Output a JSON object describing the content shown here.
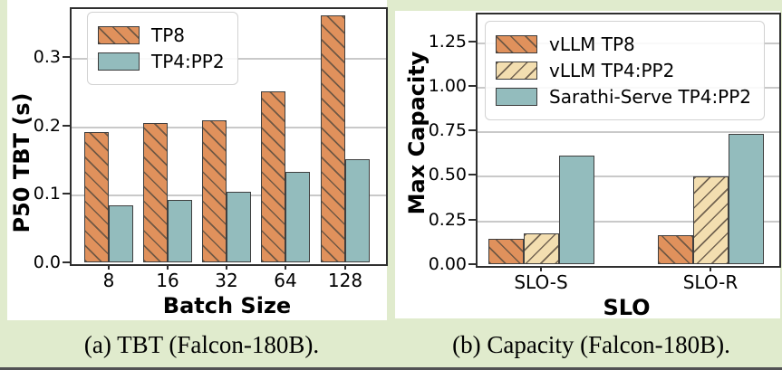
{
  "page": {
    "background_color": "#e0ebcd",
    "figure_background_color": "#ffffff",
    "bottom_bar_color": "#515154"
  },
  "style": {
    "grid_color": "#c9c9c9",
    "axis_color": "#2f2f2f",
    "hatch_color": "rgba(92,78,64,0.85)",
    "bar_edge_color": "#3f3f3f",
    "legend_border_color": "#d2d2d2",
    "text_color": "#000000"
  },
  "chart_data": [
    {
      "type": "bar",
      "title": "",
      "xlabel": "Batch Size",
      "ylabel": "P50 TBT (s)",
      "categories": [
        "8",
        "16",
        "32",
        "64",
        "128"
      ],
      "series": [
        {
          "name": "TP8",
          "color": "#E0915C",
          "hatch": "\\",
          "values": [
            0.19,
            0.204,
            0.208,
            0.249,
            0.361
          ]
        },
        {
          "name": "TP4:PP2",
          "color": "#93BCBD",
          "hatch": "",
          "values": [
            0.083,
            0.091,
            0.103,
            0.132,
            0.15
          ]
        }
      ],
      "ylim": [
        0,
        0.3725
      ],
      "yticks": [
        0,
        0.1,
        0.2,
        0.3
      ],
      "ytick_labels": [
        "0.0",
        "0.1",
        "0.2",
        "0.3"
      ],
      "grid": true,
      "legend_position": "upper left",
      "caption": "(a) TBT (Falcon-180B)."
    },
    {
      "type": "bar",
      "title": "",
      "xlabel": "SLO",
      "ylabel": "Max Capacity",
      "categories": [
        "SLO-S",
        "SLO-R"
      ],
      "series": [
        {
          "name": "vLLM TP8",
          "color": "#E0915C",
          "hatch": "\\",
          "values": [
            0.14,
            0.16
          ]
        },
        {
          "name": "vLLM TP4:PP2",
          "color": "#F3DEB0",
          "hatch": "/",
          "values": [
            0.17,
            0.49
          ]
        },
        {
          "name": "Sarathi-Serve TP4:PP2",
          "color": "#93BCBD",
          "hatch": "",
          "values": [
            0.61,
            0.73
          ]
        }
      ],
      "ylim": [
        0,
        1.41
      ],
      "yticks": [
        0,
        0.25,
        0.5,
        0.75,
        1.0,
        1.25
      ],
      "ytick_labels": [
        "0.00",
        "0.25",
        "0.50",
        "0.75",
        "1.00",
        "1.25"
      ],
      "grid": true,
      "legend_position": "upper left",
      "caption": "(b) Capacity (Falcon-180B)."
    }
  ]
}
